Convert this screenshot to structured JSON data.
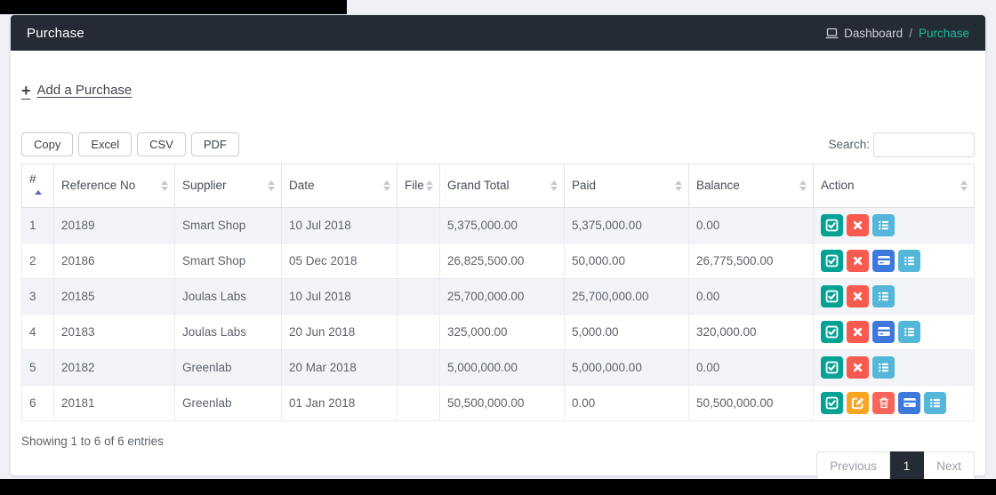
{
  "header": {
    "title": "Purchase",
    "breadcrumb": {
      "dashboard": "Dashboard",
      "separator": "/",
      "current": "Purchase"
    }
  },
  "actions_bar": {
    "plus": "+",
    "add_link": "Add a Purchase"
  },
  "toolbar": {
    "export_buttons": [
      "Copy",
      "Excel",
      "CSV",
      "PDF"
    ],
    "search_label": "Search:",
    "search_value": ""
  },
  "table": {
    "columns": [
      {
        "label": "#",
        "sort": "asc"
      },
      {
        "label": "Reference No",
        "sort": "both"
      },
      {
        "label": "Supplier",
        "sort": "both"
      },
      {
        "label": "Date",
        "sort": "both"
      },
      {
        "label": "File",
        "sort": "both"
      },
      {
        "label": "Grand Total",
        "sort": "both"
      },
      {
        "label": "Paid",
        "sort": "both"
      },
      {
        "label": "Balance",
        "sort": "both"
      },
      {
        "label": "Action",
        "sort": "both"
      }
    ],
    "rows": [
      {
        "num": "1",
        "reference_no": "20189",
        "supplier": "Smart Shop",
        "date": "10 Jul 2018",
        "file": "",
        "grand_total": "5,375,000.00",
        "paid": "5,375,000.00",
        "balance": "0.00",
        "actions": [
          "approve",
          "cancel",
          "detail"
        ]
      },
      {
        "num": "2",
        "reference_no": "20186",
        "supplier": "Smart Shop",
        "date": "05 Dec 2018",
        "file": "",
        "grand_total": "26,825,500.00",
        "paid": "50,000.00",
        "balance": "26,775,500.00",
        "actions": [
          "approve",
          "cancel",
          "payment",
          "detail"
        ]
      },
      {
        "num": "3",
        "reference_no": "20185",
        "supplier": "Joulas Labs",
        "date": "10 Jul 2018",
        "file": "",
        "grand_total": "25,700,000.00",
        "paid": "25,700,000.00",
        "balance": "0.00",
        "actions": [
          "approve",
          "cancel",
          "detail"
        ]
      },
      {
        "num": "4",
        "reference_no": "20183",
        "supplier": "Joulas Labs",
        "date": "20 Jun 2018",
        "file": "",
        "grand_total": "325,000.00",
        "paid": "5,000.00",
        "balance": "320,000.00",
        "actions": [
          "approve",
          "cancel",
          "payment",
          "detail"
        ]
      },
      {
        "num": "5",
        "reference_no": "20182",
        "supplier": "Greenlab",
        "date": "20 Mar 2018",
        "file": "",
        "grand_total": "5,000,000.00",
        "paid": "5,000,000.00",
        "balance": "0.00",
        "actions": [
          "approve",
          "cancel",
          "detail"
        ]
      },
      {
        "num": "6",
        "reference_no": "20181",
        "supplier": "Greenlab",
        "date": "01 Jan 2018",
        "file": "",
        "grand_total": "50,500,000.00",
        "paid": "0.00",
        "balance": "50,500,000.00",
        "actions": [
          "approve",
          "edit",
          "delete",
          "payment",
          "detail"
        ]
      }
    ],
    "summary": "Showing 1 to 6 of 6 entries"
  },
  "pagination": {
    "previous": "Previous",
    "page": "1",
    "next": "Next"
  },
  "colors": {
    "header_bg": "#252b35",
    "breadcrumb_active": "#1abc9c",
    "stripe": "#f2f4f8",
    "sort_active": "#5c68c9",
    "page_active_bg": "#252b35",
    "action_approve": "#00a294",
    "action_cancel": "#f95a50",
    "action_edit": "#f6a623",
    "action_delete": "#f9655b",
    "action_payment": "#3d79dc",
    "action_detail": "#54b7da"
  }
}
